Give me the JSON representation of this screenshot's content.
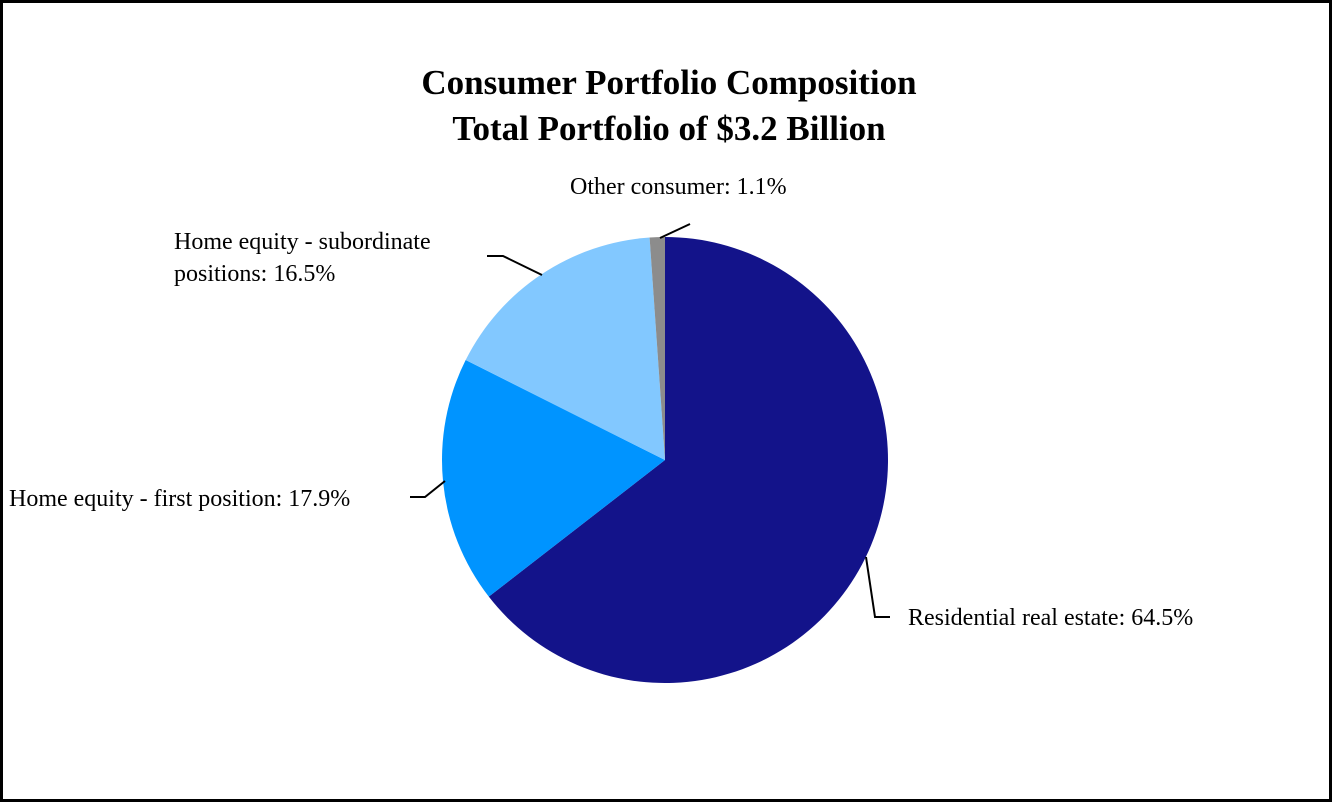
{
  "chart_data": {
    "type": "pie",
    "title": [
      "Consumer Portfolio Composition",
      "Total Portfolio of $3.2 Billion"
    ],
    "slices": [
      {
        "name": "Residential real estate",
        "value": 64.5,
        "label": "Residential real estate: 64.5%",
        "color": "#13138a"
      },
      {
        "name": "Home equity - first position",
        "value": 17.9,
        "label": "Home equity - first position: 17.9%",
        "color": "#0094ff"
      },
      {
        "name": "Home equity - subordinate positions",
        "value": 16.5,
        "label_lines": [
          "Home equity - subordinate",
          "positions: 16.5%"
        ],
        "color": "#82c8ff"
      },
      {
        "name": "Other consumer",
        "value": 1.1,
        "label": "Other consumer: 1.1%",
        "color": "#8c8c8c"
      }
    ],
    "start_angle_deg": 0,
    "direction": "clockwise"
  }
}
